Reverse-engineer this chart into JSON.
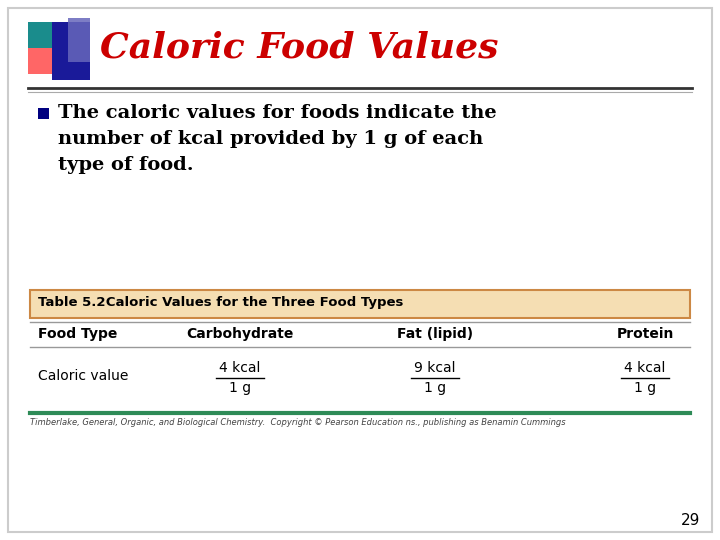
{
  "title": "Caloric Food Values",
  "title_color": "#CC0000",
  "bullet_line1": "The caloric values for foods indicate the",
  "bullet_line2": "number of kcal provided by 1 g of each",
  "bullet_line3": "type of food.",
  "bullet_color": "#000080",
  "table_title_bold": "Table 5.2",
  "table_title_rest": "   Caloric Values for the Three Food Types",
  "table_header_bg": "#F5DEB3",
  "table_header_border": "#CC8844",
  "col_headers": [
    "Food Type",
    "Carbohydrate",
    "Fat (lipid)",
    "Protein"
  ],
  "row_label": "Caloric value",
  "row_values_num": [
    "4 kcal",
    "9 kcal",
    "4 kcal"
  ],
  "row_values_den": [
    "1 g",
    "1 g",
    "1 g"
  ],
  "footer_text": "Timberlake, General, Organic, and Biological Chemistry.  Copyright © Pearson Education ns., publishing as Benamin Cummings",
  "footer_line_color": "#2E8B57",
  "slide_bg": "#FFFFFF",
  "page_number": "29",
  "deco_teal": "#1A8C8C",
  "deco_pink": "#FF6666",
  "deco_darkblue": "#1A1A99",
  "deco_lightblue": "#6666BB",
  "title_line_color": "#333333",
  "sep_line_color": "#999999"
}
